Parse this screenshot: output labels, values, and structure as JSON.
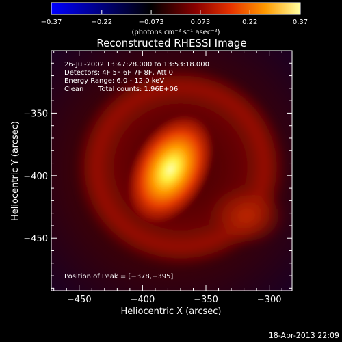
{
  "chart_data": {
    "type": "heatmap",
    "title": "Reconstructed RHESSI Image",
    "xlabel": "Heliocentric X (arcsec)",
    "ylabel": "Heliocentric Y (arcsec)",
    "xlim": [
      -472,
      -282
    ],
    "ylim": [
      -492,
      -300
    ],
    "x_ticks": [
      -450,
      -400,
      -350,
      -300
    ],
    "y_ticks": [
      -350,
      -400,
      -450
    ],
    "x_tick_labels": [
      "−450",
      "−400",
      "−350",
      "−300"
    ],
    "y_tick_labels": [
      "−350",
      "−400",
      "−450"
    ],
    "colorbar": {
      "range": [
        -0.37,
        0.37
      ],
      "ticks": [
        -0.37,
        -0.22,
        -0.073,
        0.073,
        0.22,
        0.37
      ],
      "tick_labels": [
        "−0.37",
        "−0.22",
        "−0.073",
        "0.073",
        "0.22",
        "0.37"
      ],
      "unit_text": "(photons cm⁻² s⁻¹ asec⁻²)",
      "colors": [
        "#0000ff",
        "#000000",
        "#7a0000",
        "#e63200",
        "#ff9a00",
        "#ffff80"
      ]
    },
    "annotations": [
      "26-Jul-2002 13:47:28.000 to 13:53:18.000",
      "Detectors: 4F 5F 6F 7F 8F, Att 0",
      "Energy Range: 6.0 - 12.0 keV",
      "Clean",
      "Total counts: 1.96E+06"
    ],
    "peak_text": "Position of Peak = [−378,−395]",
    "peak": [
      -378,
      -395
    ],
    "sources": [
      {
        "x": -378,
        "y": -395,
        "amplitude": 0.37
      },
      {
        "x": -318,
        "y": -432,
        "amplitude": 0.12
      }
    ],
    "ring": {
      "x": -370,
      "y": -393,
      "radius": 62,
      "amplitude": 0.12
    }
  },
  "footer": {
    "timestamp": "18-Apr-2013 22:09"
  }
}
